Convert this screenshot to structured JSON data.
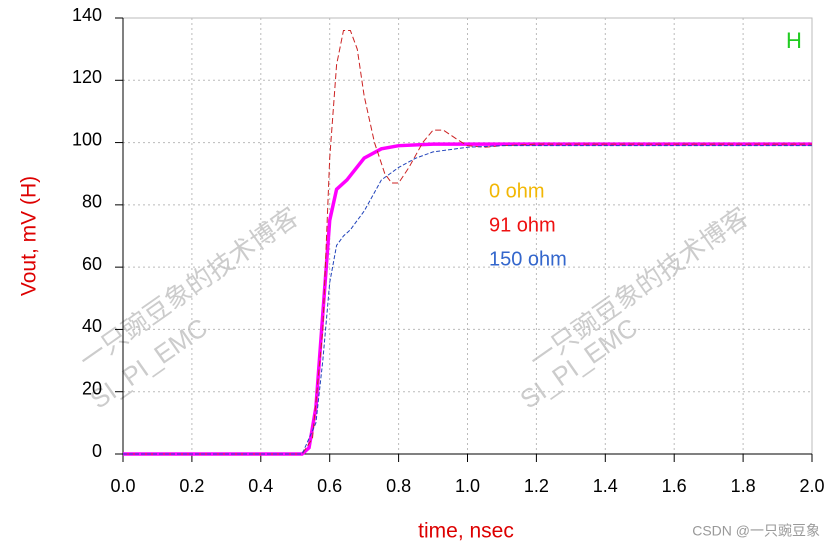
{
  "chart_data": {
    "type": "line",
    "annotation": "H",
    "x_label": "time, nsec",
    "y_label": "Vout, mV (H)",
    "watermark": [
      "一只豌豆象的技术博客",
      "SI_PI_EMC"
    ],
    "credit": "CSDN @一只豌豆象",
    "xlim": [
      0,
      2.0
    ],
    "ylim": [
      0,
      140
    ],
    "xticks": [
      {
        "value": 0,
        "label": "0.0"
      },
      0.2,
      0.4,
      0.6,
      0.8,
      {
        "value": 1,
        "label": "1.0"
      },
      1.2,
      1.4,
      1.6,
      1.8,
      {
        "value": 2,
        "label": "2.0"
      }
    ],
    "yticks": [
      0,
      20,
      40,
      60,
      80,
      100,
      120,
      140
    ],
    "grid": true,
    "series": [
      {
        "name": "0 ohm",
        "color": "#ff00ff",
        "label_color": "#f2b705",
        "width": 3.5,
        "x": [
          0,
          0.52,
          0.54,
          0.56,
          0.58,
          0.6,
          0.62,
          0.65,
          0.7,
          0.75,
          0.8,
          0.9,
          1.0,
          2.0
        ],
        "values": [
          0,
          0,
          2,
          15,
          45,
          75,
          85,
          88,
          95,
          98,
          99,
          99.5,
          99.5,
          99.5
        ]
      },
      {
        "name": "91 ohm",
        "color": "#cc2222",
        "label_color": "#ee1111",
        "width": 1,
        "dash": "6 3",
        "x": [
          0,
          0.52,
          0.55,
          0.58,
          0.6,
          0.62,
          0.64,
          0.66,
          0.68,
          0.7,
          0.73,
          0.76,
          0.78,
          0.8,
          0.83,
          0.87,
          0.9,
          0.93,
          0.97,
          1.0,
          1.05,
          1.1,
          1.2,
          2.0
        ],
        "values": [
          0,
          0,
          5,
          40,
          95,
          125,
          136,
          136,
          130,
          115,
          100,
          90,
          87,
          87,
          92,
          100,
          104,
          104,
          101,
          99,
          98.5,
          99,
          99.5,
          99.5
        ]
      },
      {
        "name": "150 ohm",
        "color": "#2244bb",
        "label_color": "#3366cc",
        "width": 1,
        "dash": "4 2",
        "x": [
          0,
          0.52,
          0.56,
          0.58,
          0.6,
          0.62,
          0.64,
          0.66,
          0.7,
          0.75,
          0.8,
          0.85,
          0.9,
          1.0,
          1.1,
          2.0
        ],
        "values": [
          0,
          0,
          10,
          30,
          55,
          67,
          70,
          72,
          78,
          88,
          92,
          95,
          97,
          98.5,
          99,
          99
        ]
      }
    ]
  }
}
